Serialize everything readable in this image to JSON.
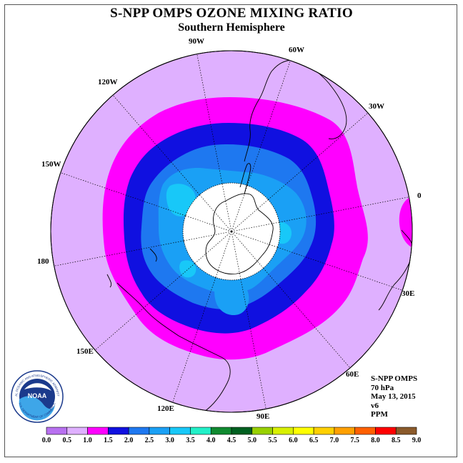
{
  "header": {
    "title": "S-NPP OMPS OZONE MIXING RATIO",
    "subtitle": "Southern Hemisphere"
  },
  "map": {
    "projection": "south-polar-stereographic",
    "longitude_labels": [
      "90W",
      "60W",
      "30W",
      "0",
      "30E",
      "60E",
      "90E",
      "120E",
      "150E",
      "180",
      "150W",
      "120W"
    ],
    "colors": {
      "band_0_5_1_0": "#dfb0ff",
      "band_1_0_1_5": "#ff00ff",
      "band_1_5_2_0": "#1010e0",
      "band_2_0_2_5": "#1e78f0",
      "band_2_5_3_0": "#1aa0f5",
      "band_3_0_3_5": "#18c8f8",
      "no_data": "#ffffff"
    }
  },
  "info": {
    "instrument": "S-NPP OMPS",
    "level": "70 hPa",
    "date": "May 13, 2015",
    "version": "v6",
    "units": "PPM"
  },
  "logo": {
    "text": "NOAA",
    "ring_text": "NATIONAL OCEANIC AND ATMOSPHERIC ADMINISTRATION",
    "ring_text_bottom": "U.S. DEPARTMENT OF COMMERCE"
  },
  "colorbar": {
    "labels": [
      "0.0",
      "0.5",
      "1.0",
      "1.5",
      "2.0",
      "2.5",
      "3.0",
      "3.5",
      "4.0",
      "4.5",
      "5.0",
      "5.5",
      "6.0",
      "6.5",
      "7.0",
      "7.5",
      "8.0",
      "8.5",
      "9.0"
    ],
    "colors": [
      "#b870f0",
      "#dfb0ff",
      "#ff00ff",
      "#1010e0",
      "#1e78f0",
      "#1aa0f5",
      "#18c8f8",
      "#22f0c8",
      "#108a30",
      "#006020",
      "#98d000",
      "#d8f000",
      "#ffff00",
      "#ffd000",
      "#ffa000",
      "#ff6000",
      "#ff0000",
      "#8b5a2b"
    ]
  }
}
